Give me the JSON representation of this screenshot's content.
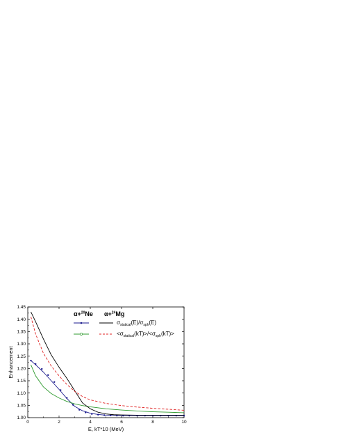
{
  "chart_data": {
    "type": "line",
    "xlabel_pre": "E",
    "xlabel_post": ", kT*10 (MeV)",
    "ylabel": "Enhancement",
    "xlim": [
      0,
      10
    ],
    "ylim": [
      1.0,
      1.45
    ],
    "x_ticks": [
      "0",
      "2",
      "4",
      "6",
      "8",
      "10"
    ],
    "y_ticks": [
      "1.00",
      "1.05",
      "1.10",
      "1.15",
      "1.20",
      "1.25",
      "1.30",
      "1.35",
      "1.40",
      "1.45"
    ],
    "legend": {
      "col1_head": {
        "pre": "α+",
        "sup": "20",
        "post": "Ne"
      },
      "col2_head": {
        "pre": "α+",
        "sup": "24",
        "post": "Mg"
      },
      "row1": {
        "a": "σ",
        "b": "statical",
        "c": "(E)/σ",
        "d": "sph",
        "e": "(E)"
      },
      "row2": {
        "a": "<σ",
        "b": "statical",
        "c": "(kT)>/<σ",
        "d": "sph",
        "e": "(kT)>"
      }
    },
    "series": [
      {
        "key": "ne_energy",
        "color": "#1a1a8c",
        "style": "solid-markers",
        "x": [
          0.2,
          0.5,
          1.0,
          1.5,
          2.0,
          2.5,
          3.0,
          3.5,
          4.0,
          4.5,
          5.0,
          5.5,
          6.0,
          6.5,
          7.0,
          7.5,
          8.0,
          8.5,
          9.0,
          9.5,
          10.0
        ],
        "y": [
          1.232,
          1.215,
          1.185,
          1.15,
          1.115,
          1.078,
          1.046,
          1.028,
          1.018,
          1.013,
          1.01,
          1.009,
          1.008,
          1.008,
          1.008,
          1.008,
          1.008,
          1.008,
          1.008,
          1.008,
          1.008
        ],
        "marker_x": [
          0.2,
          0.5,
          0.9,
          1.3,
          1.7,
          2.1,
          2.5,
          2.9,
          3.3,
          3.7,
          4.1,
          4.5,
          4.9,
          5.3,
          5.7,
          6.1,
          6.5,
          7.0,
          7.5,
          8.0,
          8.5,
          9.0,
          9.5,
          10.0
        ],
        "marker_y": [
          1.232,
          1.218,
          1.198,
          1.173,
          1.145,
          1.112,
          1.08,
          1.052,
          1.032,
          1.021,
          1.015,
          1.012,
          1.01,
          1.009,
          1.008,
          1.008,
          1.008,
          1.008,
          1.008,
          1.008,
          1.008,
          1.008,
          1.008,
          1.008
        ]
      },
      {
        "key": "ne_thermal",
        "color": "#2e9a2e",
        "style": "solid",
        "x": [
          0.2,
          0.5,
          1.0,
          1.5,
          2.0,
          2.5,
          3.0,
          3.5,
          4.0,
          5.0,
          6.0,
          7.0,
          8.0,
          9.0,
          10.0
        ],
        "y": [
          1.215,
          1.17,
          1.125,
          1.098,
          1.08,
          1.066,
          1.056,
          1.049,
          1.044,
          1.036,
          1.031,
          1.027,
          1.024,
          1.022,
          1.02
        ]
      },
      {
        "key": "mg_energy",
        "color": "#000000",
        "style": "solid",
        "x": [
          0.2,
          0.5,
          1.0,
          1.5,
          2.0,
          2.5,
          3.0,
          3.5,
          4.0,
          4.5,
          5.0,
          5.5,
          6.0,
          7.0,
          8.0,
          9.0,
          10.0
        ],
        "y": [
          1.43,
          1.39,
          1.32,
          1.255,
          1.205,
          1.16,
          1.11,
          1.06,
          1.036,
          1.022,
          1.015,
          1.012,
          1.011,
          1.01,
          1.01,
          1.01,
          1.01
        ]
      },
      {
        "key": "mg_thermal",
        "color": "#e02020",
        "style": "dashed",
        "x": [
          0.2,
          0.5,
          1.0,
          1.5,
          2.0,
          2.5,
          3.0,
          3.5,
          4.0,
          5.0,
          6.0,
          7.0,
          8.0,
          9.0,
          10.0
        ],
        "y": [
          1.41,
          1.34,
          1.262,
          1.21,
          1.17,
          1.135,
          1.107,
          1.086,
          1.072,
          1.058,
          1.049,
          1.043,
          1.038,
          1.034,
          1.03
        ]
      }
    ]
  }
}
